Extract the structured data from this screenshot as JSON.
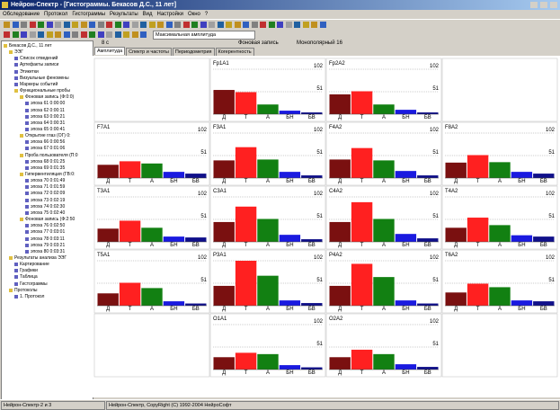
{
  "window": {
    "title": "Нейрон-Спектр - [Гистограммы. Бекасов Д.С., 11 лет]"
  },
  "menu": [
    "Обследование",
    "Протокол",
    "Гистограммы",
    "Результаты",
    "Вид",
    "Настройки",
    "Окно",
    "?"
  ],
  "toolbar": {
    "dropdown": "Максимальная амплитуда"
  },
  "info_bar": [
    "8 с",
    "Фоновая запись",
    "Монополярный 16"
  ],
  "tabs": [
    "Амплитуда",
    "Спектр и частоты",
    "Периодометрия",
    "Когерентность"
  ],
  "tree": [
    {
      "label": "Бекасов Д.С., 11 лет",
      "children": [
        {
          "label": "ЭЭГ",
          "children": [
            {
              "label": "Список отведений"
            },
            {
              "label": "Артефакты записи"
            },
            {
              "label": "Этикетки"
            },
            {
              "label": "Визуальные феномены"
            },
            {
              "label": "Маркеры событий"
            },
            {
              "label": "Функциональные пробы",
              "children": [
                {
                  "label": "Фоновая запись (Ф:0:0)",
                  "children": [
                    {
                      "label": "эпоха 61 0:00:00"
                    },
                    {
                      "label": "эпоха 62 0:00:11"
                    },
                    {
                      "label": "эпоха 63 0:00:21"
                    },
                    {
                      "label": "эпоха 64 0:00:31"
                    },
                    {
                      "label": "эпоха 65 0:00:41"
                    }
                  ]
                },
                {
                  "label": "Открытие глаз (ОГ) 0:",
                  "children": [
                    {
                      "label": "эпоха 66 0:00:56"
                    },
                    {
                      "label": "эпоха 67 0:01:06"
                    }
                  ]
                },
                {
                  "label": "Проба пользователя (П:0",
                  "children": [
                    {
                      "label": "эпоха 68 0:01:25"
                    },
                    {
                      "label": "эпоха 69 0:01:35"
                    }
                  ]
                },
                {
                  "label": "Гипервентиляция (ГВ:0:",
                  "children": [
                    {
                      "label": "эпоха 70 0:01:49"
                    },
                    {
                      "label": "эпоха 71 0:01:59"
                    },
                    {
                      "label": "эпоха 72 0:02:09"
                    },
                    {
                      "label": "эпоха 73 0:02:19"
                    },
                    {
                      "label": "эпоха 74 0:02:30"
                    },
                    {
                      "label": "эпоха 75 0:02:40"
                    }
                  ]
                },
                {
                  "label": "Фоновая запись (Ф:2:50",
                  "children": [
                    {
                      "label": "эпоха 76 0:02:50"
                    },
                    {
                      "label": "эпоха 77 0:03:01"
                    },
                    {
                      "label": "эпоха 78 0:03:11"
                    },
                    {
                      "label": "эпоха 79 0:03:21"
                    },
                    {
                      "label": "эпоха 80 0:03:31"
                    }
                  ]
                }
              ]
            }
          ]
        },
        {
          "label": "Результаты анализа ЭЭГ",
          "children": [
            {
              "label": "Картирование"
            },
            {
              "label": "Графики"
            },
            {
              "label": "Таблица"
            },
            {
              "label": "Гистограммы"
            }
          ]
        },
        {
          "label": "Протоколы",
          "children": [
            {
              "label": "1. Протокол"
            }
          ]
        }
      ]
    }
  ],
  "chart_data": [
    {
      "type": "bar",
      "title": "Fp1A1",
      "categories": [
        "Д",
        "Т",
        "А",
        "БН",
        "БВ"
      ],
      "values": [
        55,
        50,
        22,
        8,
        4
      ],
      "colors": [
        "#7a1010",
        "#ff2020",
        "#128012",
        "#1a1ae0",
        "#10108a"
      ],
      "ylim": [
        0,
        102
      ],
      "yticks": [
        51,
        102
      ]
    },
    {
      "type": "bar",
      "title": "Fp2A2",
      "categories": [
        "Д",
        "Т",
        "А",
        "БН",
        "БВ"
      ],
      "values": [
        45,
        52,
        22,
        10,
        4
      ],
      "colors": [
        "#7a1010",
        "#ff2020",
        "#128012",
        "#1a1ae0",
        "#10108a"
      ],
      "ylim": [
        0,
        102
      ],
      "yticks": [
        51,
        102
      ]
    },
    {
      "type": "bar",
      "title": "F7A1",
      "categories": [
        "Д",
        "Т",
        "А",
        "БН",
        "БВ"
      ],
      "values": [
        30,
        38,
        33,
        14,
        10
      ],
      "colors": [
        "#7a1010",
        "#ff2020",
        "#128012",
        "#1a1ae0",
        "#10108a"
      ],
      "ylim": [
        0,
        102
      ],
      "yticks": [
        51,
        102
      ]
    },
    {
      "type": "bar",
      "title": "F3A1",
      "categories": [
        "Д",
        "Т",
        "А",
        "БН",
        "БВ"
      ],
      "values": [
        40,
        70,
        42,
        14,
        6
      ],
      "colors": [
        "#7a1010",
        "#ff2020",
        "#128012",
        "#1a1ae0",
        "#10108a"
      ],
      "ylim": [
        0,
        102
      ],
      "yticks": [
        51,
        102
      ]
    },
    {
      "type": "bar",
      "title": "F4A2",
      "categories": [
        "Д",
        "Т",
        "А",
        "БН",
        "БВ"
      ],
      "values": [
        42,
        68,
        40,
        16,
        6
      ],
      "colors": [
        "#7a1010",
        "#ff2020",
        "#128012",
        "#1a1ae0",
        "#10108a"
      ],
      "ylim": [
        0,
        102
      ],
      "yticks": [
        51,
        102
      ]
    },
    {
      "type": "bar",
      "title": "F8A2",
      "categories": [
        "Д",
        "Т",
        "А",
        "БН",
        "БВ"
      ],
      "values": [
        35,
        52,
        36,
        14,
        10
      ],
      "colors": [
        "#7a1010",
        "#ff2020",
        "#128012",
        "#1a1ae0",
        "#10108a"
      ],
      "ylim": [
        0,
        102
      ],
      "yticks": [
        51,
        102
      ]
    },
    {
      "type": "bar",
      "title": "T3A1",
      "categories": [
        "Д",
        "Т",
        "А",
        "БН",
        "БВ"
      ],
      "values": [
        30,
        48,
        32,
        12,
        10
      ],
      "colors": [
        "#7a1010",
        "#ff2020",
        "#128012",
        "#1a1ae0",
        "#10108a"
      ],
      "ylim": [
        0,
        102
      ],
      "yticks": [
        51,
        102
      ]
    },
    {
      "type": "bar",
      "title": "C3A1",
      "categories": [
        "Д",
        "Т",
        "А",
        "БН",
        "БВ"
      ],
      "values": [
        45,
        80,
        52,
        16,
        6
      ],
      "colors": [
        "#7a1010",
        "#ff2020",
        "#128012",
        "#1a1ae0",
        "#10108a"
      ],
      "ylim": [
        0,
        102
      ],
      "yticks": [
        51,
        102
      ]
    },
    {
      "type": "bar",
      "title": "C4A2",
      "categories": [
        "Д",
        "Т",
        "А",
        "БН",
        "БВ"
      ],
      "values": [
        45,
        90,
        52,
        18,
        8
      ],
      "colors": [
        "#7a1010",
        "#ff2020",
        "#128012",
        "#1a1ae0",
        "#10108a"
      ],
      "ylim": [
        0,
        102
      ],
      "yticks": [
        51,
        102
      ]
    },
    {
      "type": "bar",
      "title": "T4A2",
      "categories": [
        "Д",
        "Т",
        "А",
        "БН",
        "БВ"
      ],
      "values": [
        32,
        55,
        38,
        15,
        12
      ],
      "colors": [
        "#7a1010",
        "#ff2020",
        "#128012",
        "#1a1ae0",
        "#10108a"
      ],
      "ylim": [
        0,
        102
      ],
      "yticks": [
        51,
        102
      ]
    },
    {
      "type": "bar",
      "title": "T5A1",
      "categories": [
        "Д",
        "Т",
        "А",
        "БН",
        "БВ"
      ],
      "values": [
        28,
        52,
        40,
        10,
        5
      ],
      "colors": [
        "#7a1010",
        "#ff2020",
        "#128012",
        "#1a1ae0",
        "#10108a"
      ],
      "ylim": [
        0,
        102
      ],
      "yticks": [
        51,
        102
      ]
    },
    {
      "type": "bar",
      "title": "P3A1",
      "categories": [
        "Д",
        "Т",
        "А",
        "БН",
        "БВ"
      ],
      "values": [
        45,
        102,
        68,
        12,
        6
      ],
      "colors": [
        "#7a1010",
        "#ff2020",
        "#128012",
        "#1a1ae0",
        "#10108a"
      ],
      "ylim": [
        0,
        102
      ],
      "yticks": [
        51,
        102
      ]
    },
    {
      "type": "bar",
      "title": "P4A2",
      "categories": [
        "Д",
        "Т",
        "А",
        "БН",
        "БВ"
      ],
      "values": [
        45,
        95,
        65,
        12,
        5
      ],
      "colors": [
        "#7a1010",
        "#ff2020",
        "#128012",
        "#1a1ae0",
        "#10108a"
      ],
      "ylim": [
        0,
        102
      ],
      "yticks": [
        51,
        102
      ]
    },
    {
      "type": "bar",
      "title": "T6A2",
      "categories": [
        "Д",
        "Т",
        "А",
        "БН",
        "БВ"
      ],
      "values": [
        30,
        50,
        42,
        12,
        10
      ],
      "colors": [
        "#7a1010",
        "#ff2020",
        "#128012",
        "#1a1ae0",
        "#10108a"
      ],
      "ylim": [
        0,
        102
      ],
      "yticks": [
        51,
        102
      ]
    },
    {
      "type": "bar",
      "title": "O1A1",
      "categories": [
        "Д",
        "Т",
        "А",
        "БН",
        "БВ"
      ],
      "values": [
        28,
        38,
        35,
        10,
        5
      ],
      "colors": [
        "#7a1010",
        "#ff2020",
        "#128012",
        "#1a1ae0",
        "#10108a"
      ],
      "ylim": [
        0,
        102
      ],
      "yticks": [
        51,
        102
      ]
    },
    {
      "type": "bar",
      "title": "O2A2",
      "categories": [
        "Д",
        "Т",
        "А",
        "БН",
        "БВ"
      ],
      "values": [
        28,
        45,
        35,
        12,
        6
      ],
      "colors": [
        "#7a1010",
        "#ff2020",
        "#128012",
        "#1a1ae0",
        "#10108a"
      ],
      "ylim": [
        0,
        102
      ],
      "yticks": [
        51,
        102
      ]
    }
  ],
  "status_bar": [
    "Нейрон-Спектр-2 и 3",
    "Нейрон-Спектр, CopyRight (C) 1992-2004 НейроСофт"
  ]
}
